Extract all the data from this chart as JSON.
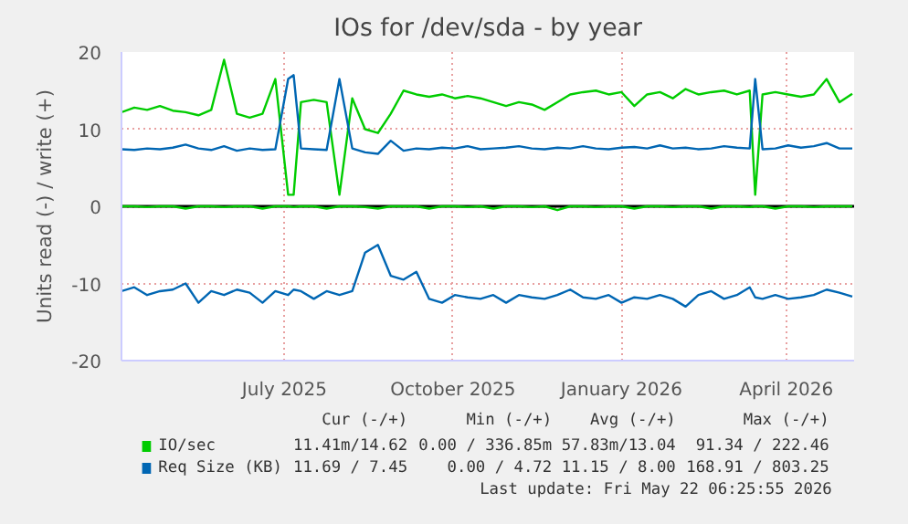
{
  "chart_data": {
    "type": "line",
    "title": "IOs for /dev/sda - by year",
    "ylabel": "Units read (-) / write (+)",
    "x": [
      "2025-04-17",
      "2025-04-24",
      "2025-05-01",
      "2025-05-08",
      "2025-05-15",
      "2025-05-22",
      "2025-05-29",
      "2025-06-05",
      "2025-06-12",
      "2025-06-19",
      "2025-06-26",
      "2025-07-03",
      "2025-07-10",
      "2025-07-17",
      "2025-07-20",
      "2025-07-24",
      "2025-07-31",
      "2025-08-07",
      "2025-08-14",
      "2025-08-21",
      "2025-08-28",
      "2025-09-04",
      "2025-09-11",
      "2025-09-18",
      "2025-09-25",
      "2025-10-02",
      "2025-10-09",
      "2025-10-16",
      "2025-10-23",
      "2025-10-30",
      "2025-11-06",
      "2025-11-13",
      "2025-11-20",
      "2025-11-27",
      "2025-12-04",
      "2025-12-11",
      "2025-12-18",
      "2025-12-25",
      "2026-01-01",
      "2026-01-08",
      "2026-01-15",
      "2026-01-22",
      "2026-01-29",
      "2026-02-05",
      "2026-02-12",
      "2026-02-19",
      "2026-02-26",
      "2026-03-05",
      "2026-03-12",
      "2026-03-19",
      "2026-03-26",
      "2026-03-29",
      "2026-04-02",
      "2026-04-09",
      "2026-04-16",
      "2026-04-23",
      "2026-04-30",
      "2026-05-07",
      "2026-05-14",
      "2026-05-21"
    ],
    "series": [
      {
        "color": "#00cc00",
        "values": [
          0,
          0,
          -0.1,
          0,
          0,
          -0.3,
          0,
          0,
          -0.1,
          0,
          0,
          -0.3,
          0,
          0,
          -0.1,
          0,
          0,
          -0.3,
          0,
          0,
          -0.1,
          -0.3,
          0,
          0,
          0,
          -0.3,
          0,
          0,
          -0.1,
          0,
          -0.3,
          0,
          0,
          -0.1,
          0,
          -0.5,
          0,
          0,
          -0.1,
          0,
          0,
          -0.3,
          0,
          0,
          -0.1,
          0,
          0,
          -0.3,
          0,
          0,
          -0.1,
          0,
          0,
          -0.3,
          0,
          0,
          -0.1,
          0,
          0,
          0
        ]
      },
      {
        "name": "IO/sec",
        "color": "#00cc00",
        "values": [
          12.2,
          12.8,
          12.5,
          13.0,
          12.4,
          12.2,
          11.8,
          12.5,
          19.0,
          12.0,
          11.5,
          12.0,
          16.5,
          1.5,
          1.5,
          13.5,
          13.8,
          13.5,
          1.5,
          14.0,
          10.0,
          9.5,
          12.0,
          15.0,
          14.5,
          14.2,
          14.5,
          14.0,
          14.3,
          14.0,
          13.5,
          13.0,
          13.5,
          13.2,
          12.5,
          13.5,
          14.5,
          14.8,
          15.0,
          14.5,
          14.8,
          13.0,
          14.5,
          14.8,
          14.0,
          15.2,
          14.5,
          14.8,
          15.0,
          14.5,
          15.0,
          1.5,
          14.5,
          14.8,
          14.5,
          14.2,
          14.5,
          16.5,
          13.5,
          14.6
        ]
      },
      {
        "color": "#0066b3",
        "values": [
          -11.0,
          -10.5,
          -11.5,
          -11.0,
          -10.8,
          -10.0,
          -12.5,
          -11.0,
          -11.5,
          -10.8,
          -11.2,
          -12.5,
          -11.0,
          -11.5,
          -10.8,
          -11.0,
          -12.0,
          -11.0,
          -11.5,
          -11.0,
          -6.0,
          -5.0,
          -9.0,
          -9.5,
          -8.5,
          -12.0,
          -12.5,
          -11.5,
          -11.8,
          -12.0,
          -11.5,
          -12.5,
          -11.5,
          -11.8,
          -12.0,
          -11.5,
          -10.8,
          -11.8,
          -12.0,
          -11.5,
          -12.5,
          -11.8,
          -12.0,
          -11.5,
          -12.0,
          -13.0,
          -11.5,
          -11.0,
          -12.0,
          -11.5,
          -10.5,
          -11.8,
          -12.0,
          -11.5,
          -12.0,
          -11.8,
          -11.5,
          -10.8,
          -11.2,
          -11.7
        ]
      },
      {
        "name": "Req Size (KB)",
        "color": "#0066b3",
        "values": [
          7.4,
          7.3,
          7.5,
          7.4,
          7.6,
          8.0,
          7.5,
          7.3,
          7.8,
          7.2,
          7.5,
          7.3,
          7.4,
          16.5,
          17.0,
          7.5,
          7.4,
          7.3,
          16.5,
          7.5,
          7.0,
          6.8,
          8.5,
          7.2,
          7.5,
          7.4,
          7.6,
          7.5,
          7.8,
          7.4,
          7.5,
          7.6,
          7.8,
          7.5,
          7.4,
          7.6,
          7.5,
          7.8,
          7.5,
          7.4,
          7.6,
          7.7,
          7.5,
          7.9,
          7.5,
          7.6,
          7.4,
          7.5,
          7.8,
          7.6,
          7.5,
          16.5,
          7.4,
          7.5,
          7.9,
          7.6,
          7.8,
          8.2,
          7.5,
          7.5
        ]
      }
    ],
    "xlim": [
      "2025-04-17",
      "2026-05-22"
    ],
    "xticks": [
      {
        "value": "2025-07-15",
        "label": "July 2025"
      },
      {
        "value": "2025-10-15",
        "label": "October 2025"
      },
      {
        "value": "2026-01-15",
        "label": "January 2026"
      },
      {
        "value": "2026-04-15",
        "label": "April 2026"
      }
    ],
    "ylim": [
      -20,
      20
    ],
    "yticks": [
      -20,
      -10,
      0,
      10,
      20
    ],
    "grid": true,
    "legend": "bottom",
    "ref_lines": [
      {
        "axis": "y",
        "value": 0,
        "color": "#000000"
      }
    ],
    "annotations": [
      "Cur (-/+)",
      "Min (-/+)",
      "Avg (-/+)",
      "Max (-/+)",
      "11.41m/14.62",
      "0.00 / 336.85m",
      "57.83m/13.04",
      "91.34 / 222.46",
      "11.69 / 7.45",
      "0.00 / 4.72",
      "11.15 / 8.00",
      "168.91 / 803.25",
      "Last update: Fri May 22 06:25:55 2026"
    ]
  }
}
